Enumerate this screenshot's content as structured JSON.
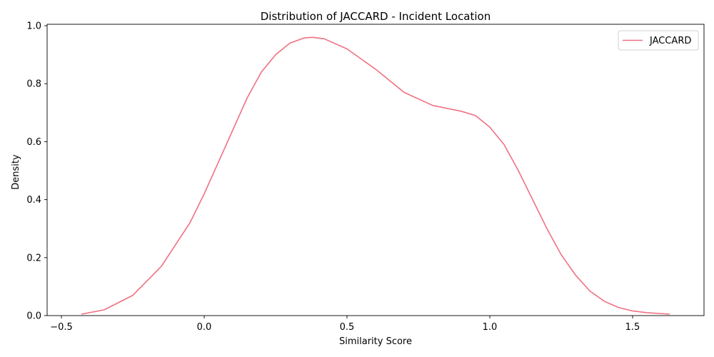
{
  "chart_data": {
    "type": "line",
    "title": "Distribution of JACCARD - Incident Location",
    "xlabel": "Similarity Score",
    "ylabel": "Density",
    "xlim": [
      -0.55,
      1.75
    ],
    "ylim": [
      0,
      1.005
    ],
    "x_ticks": [
      -0.5,
      0.0,
      0.5,
      1.0,
      1.5
    ],
    "x_tick_labels": [
      "−0.5",
      "0.0",
      "0.5",
      "1.0",
      "1.5"
    ],
    "y_ticks": [
      0.0,
      0.2,
      0.4,
      0.6,
      0.8,
      1.0
    ],
    "y_tick_labels": [
      "0.0",
      "0.2",
      "0.4",
      "0.6",
      "0.8",
      "1.0"
    ],
    "grid": false,
    "legend_position": "top-right",
    "series": [
      {
        "name": "JACCARD",
        "color": "#f07083",
        "x": [
          -0.43,
          -0.35,
          -0.25,
          -0.15,
          -0.05,
          0.0,
          0.05,
          0.1,
          0.15,
          0.2,
          0.25,
          0.3,
          0.35,
          0.38,
          0.42,
          0.5,
          0.6,
          0.7,
          0.8,
          0.9,
          0.95,
          1.0,
          1.05,
          1.1,
          1.15,
          1.2,
          1.25,
          1.3,
          1.35,
          1.4,
          1.45,
          1.5,
          1.55,
          1.63
        ],
        "y": [
          0.005,
          0.02,
          0.07,
          0.17,
          0.32,
          0.42,
          0.53,
          0.64,
          0.75,
          0.84,
          0.9,
          0.94,
          0.958,
          0.96,
          0.955,
          0.92,
          0.85,
          0.77,
          0.725,
          0.705,
          0.69,
          0.65,
          0.59,
          0.5,
          0.4,
          0.3,
          0.21,
          0.14,
          0.085,
          0.05,
          0.028,
          0.016,
          0.01,
          0.005
        ]
      }
    ]
  }
}
